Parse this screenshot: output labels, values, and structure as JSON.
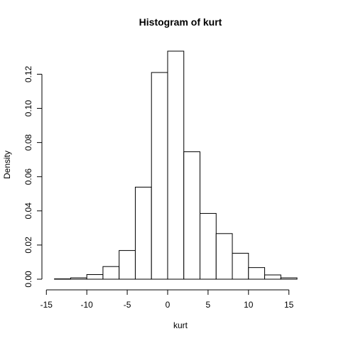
{
  "chart_data": {
    "type": "bar",
    "title": "Histogram of kurt",
    "xlabel": "kurt",
    "ylabel": "Density",
    "bin_edges": [
      -14,
      -12,
      -10,
      -8,
      -6,
      -4,
      -2,
      0,
      2,
      4,
      6,
      8,
      10,
      12,
      14,
      16
    ],
    "values": [
      0.0002,
      0.0008,
      0.0027,
      0.0074,
      0.0168,
      0.0539,
      0.121,
      0.1335,
      0.0746,
      0.0385,
      0.0267,
      0.0152,
      0.0068,
      0.0025,
      0.0008
    ],
    "x_ticks": [
      -15,
      -10,
      -5,
      0,
      5,
      10,
      15
    ],
    "y_ticks": [
      0.0,
      0.02,
      0.04,
      0.06,
      0.08,
      0.1,
      0.12
    ],
    "x_tick_labels": [
      "-15",
      "-10",
      "-5",
      "0",
      "5",
      "10",
      "15"
    ],
    "y_tick_labels": [
      "0.00",
      "0.02",
      "0.04",
      "0.06",
      "0.08",
      "0.10",
      "0.12"
    ],
    "xlim": [
      -15.2,
      17.4
    ],
    "ylim": [
      0,
      0.1335
    ],
    "grid": false,
    "legend": "none",
    "colors": {
      "bar_fill": "#ffffff",
      "bar_stroke": "#000000"
    }
  }
}
